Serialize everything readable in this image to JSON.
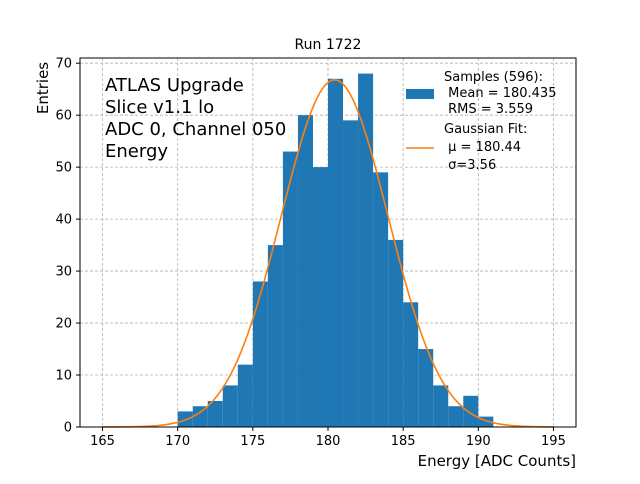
{
  "chart_data": {
    "type": "bar",
    "title": "Run 1722",
    "xlabel": "Energy [ADC Counts]",
    "ylabel": "Entries",
    "xlim": [
      163.5,
      196.5
    ],
    "ylim": [
      0,
      71
    ],
    "grid": true,
    "x_ticks": [
      165,
      170,
      175,
      180,
      185,
      190,
      195
    ],
    "y_ticks": [
      0,
      10,
      20,
      30,
      40,
      50,
      60,
      70
    ],
    "annotation_lines": [
      "ATLAS Upgrade",
      "Slice v1.1 lo",
      "ADC 0, Channel 050",
      "Energy"
    ],
    "bin_width": 1,
    "bin_left_edges": [
      170,
      171,
      172,
      173,
      174,
      175,
      176,
      177,
      178,
      179,
      180,
      181,
      182,
      183,
      184,
      185,
      186,
      187,
      188,
      189,
      190
    ],
    "values": [
      3,
      4,
      5,
      8,
      12,
      28,
      35,
      53,
      60,
      50,
      67,
      59,
      68,
      49,
      36,
      24,
      15,
      8,
      4,
      6,
      2
    ],
    "fit": {
      "type": "gaussian",
      "mu": 180.44,
      "sigma": 3.56,
      "x_range": [
        165,
        195
      ]
    },
    "colors": {
      "histogram": "#1f77b4",
      "fit": "#ff7f0e",
      "grid": "#b0b0b0"
    },
    "legend": {
      "position": "top-right",
      "entries": [
        {
          "kind": "patch",
          "lines": [
            "Samples (596):",
            " Mean = 180.435",
            " RMS = 3.559"
          ]
        },
        {
          "kind": "line",
          "lines": [
            "Gaussian Fit:",
            " μ = 180.44",
            " σ=3.56"
          ]
        }
      ]
    }
  }
}
